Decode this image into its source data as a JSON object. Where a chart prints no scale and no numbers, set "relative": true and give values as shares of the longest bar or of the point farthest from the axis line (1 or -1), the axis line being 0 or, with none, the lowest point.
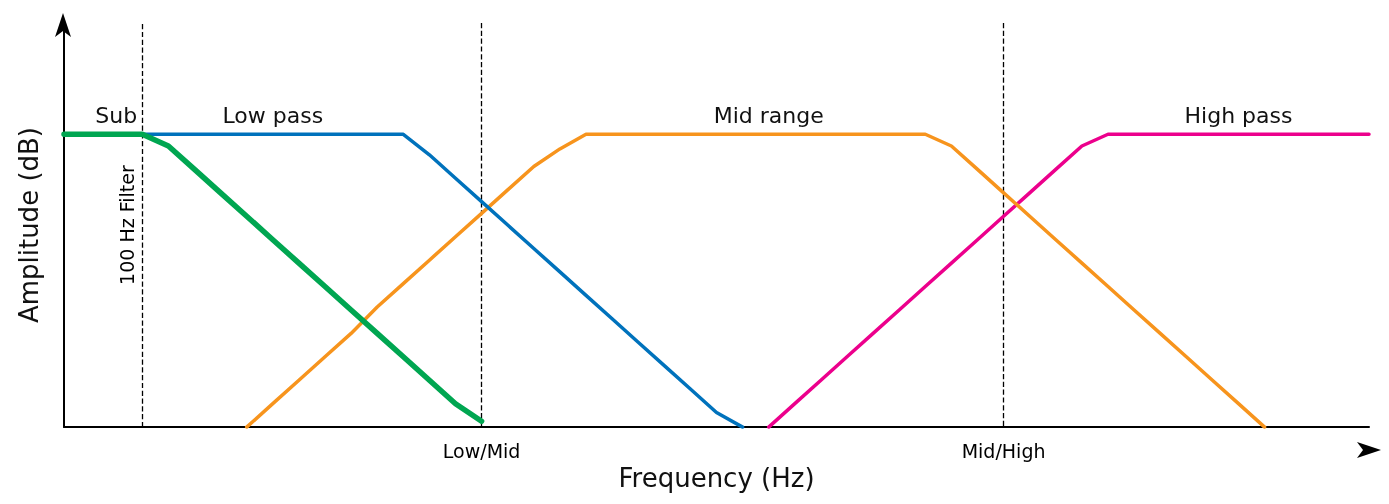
{
  "chart_data": {
    "type": "line",
    "relative": true,
    "xlabel": "Frequency (Hz)",
    "ylabel": "Amplitude (dB)",
    "tick_labels": "x",
    "grid": "x",
    "annotations": [
      "100 Hz Filter"
    ],
    "legend": false,
    "marker": "none",
    "line_style": "solid",
    "categories": [
      null,
      null,
      null,
      null,
      null,
      null,
      null,
      null,
      null,
      null,
      null,
      null,
      null,
      null,
      null,
      null,
      "Low/Mid",
      null,
      null,
      null,
      null,
      null,
      null,
      null,
      null,
      null,
      null,
      null,
      null,
      null,
      null,
      null,
      null,
      null,
      null,
      null,
      "Mid/High",
      null,
      null,
      null,
      null,
      null,
      null,
      null,
      null,
      null,
      null,
      null,
      null,
      null,
      null
    ],
    "series": [
      {
        "name": "Sub",
        "color": "#00a651",
        "values": [
          1,
          1,
          1,
          1,
          0.96,
          0.88,
          0.8,
          0.72,
          0.64,
          0.56,
          0.48,
          0.4,
          0.32,
          0.24,
          0.16,
          0.08,
          0.02,
          null,
          null,
          null,
          null,
          null,
          null,
          null,
          null,
          null,
          null,
          null,
          null,
          null,
          null,
          null,
          null,
          null,
          null,
          null,
          null,
          null,
          null,
          null,
          null,
          null,
          null,
          null,
          null,
          null,
          null,
          null,
          null,
          null,
          null
        ]
      },
      {
        "name": "Low pass",
        "color": "#0072bc",
        "values": [
          null,
          null,
          null,
          1,
          1,
          1,
          1,
          1,
          1,
          1,
          1,
          1,
          1,
          1,
          0.93,
          0.85,
          0.77,
          0.69,
          0.61,
          0.53,
          0.45,
          0.37,
          0.29,
          0.21,
          0.13,
          0.05,
          0,
          null,
          null,
          null,
          null,
          null,
          null,
          null,
          null,
          null,
          null,
          null,
          null,
          null,
          null,
          null,
          null,
          null,
          null,
          null,
          null,
          null,
          null,
          null,
          null
        ]
      },
      {
        "name": "Mid range",
        "color": "#f7941d",
        "values": [
          null,
          null,
          null,
          null,
          null,
          null,
          null,
          0,
          0.08,
          0.16,
          0.24,
          0.32,
          0.41,
          0.49,
          0.57,
          0.65,
          0.73,
          0.81,
          0.89,
          0.95,
          1,
          1,
          1,
          1,
          1,
          1,
          1,
          1,
          1,
          1,
          1,
          1,
          1,
          1,
          0.96,
          0.88,
          0.8,
          0.72,
          0.64,
          0.56,
          0.48,
          0.4,
          0.32,
          0.24,
          0.16,
          0.08,
          0,
          null,
          null,
          null,
          null
        ]
      },
      {
        "name": "High pass",
        "color": "#ec008c",
        "values": [
          null,
          null,
          null,
          null,
          null,
          null,
          null,
          null,
          null,
          null,
          null,
          null,
          null,
          null,
          null,
          null,
          null,
          null,
          null,
          null,
          null,
          null,
          null,
          null,
          null,
          null,
          null,
          0,
          0.08,
          0.16,
          0.24,
          0.32,
          0.4,
          0.48,
          0.56,
          0.64,
          0.72,
          0.8,
          0.88,
          0.96,
          1,
          1,
          1,
          1,
          1,
          1,
          1,
          1,
          1,
          1,
          1
        ]
      }
    ]
  }
}
